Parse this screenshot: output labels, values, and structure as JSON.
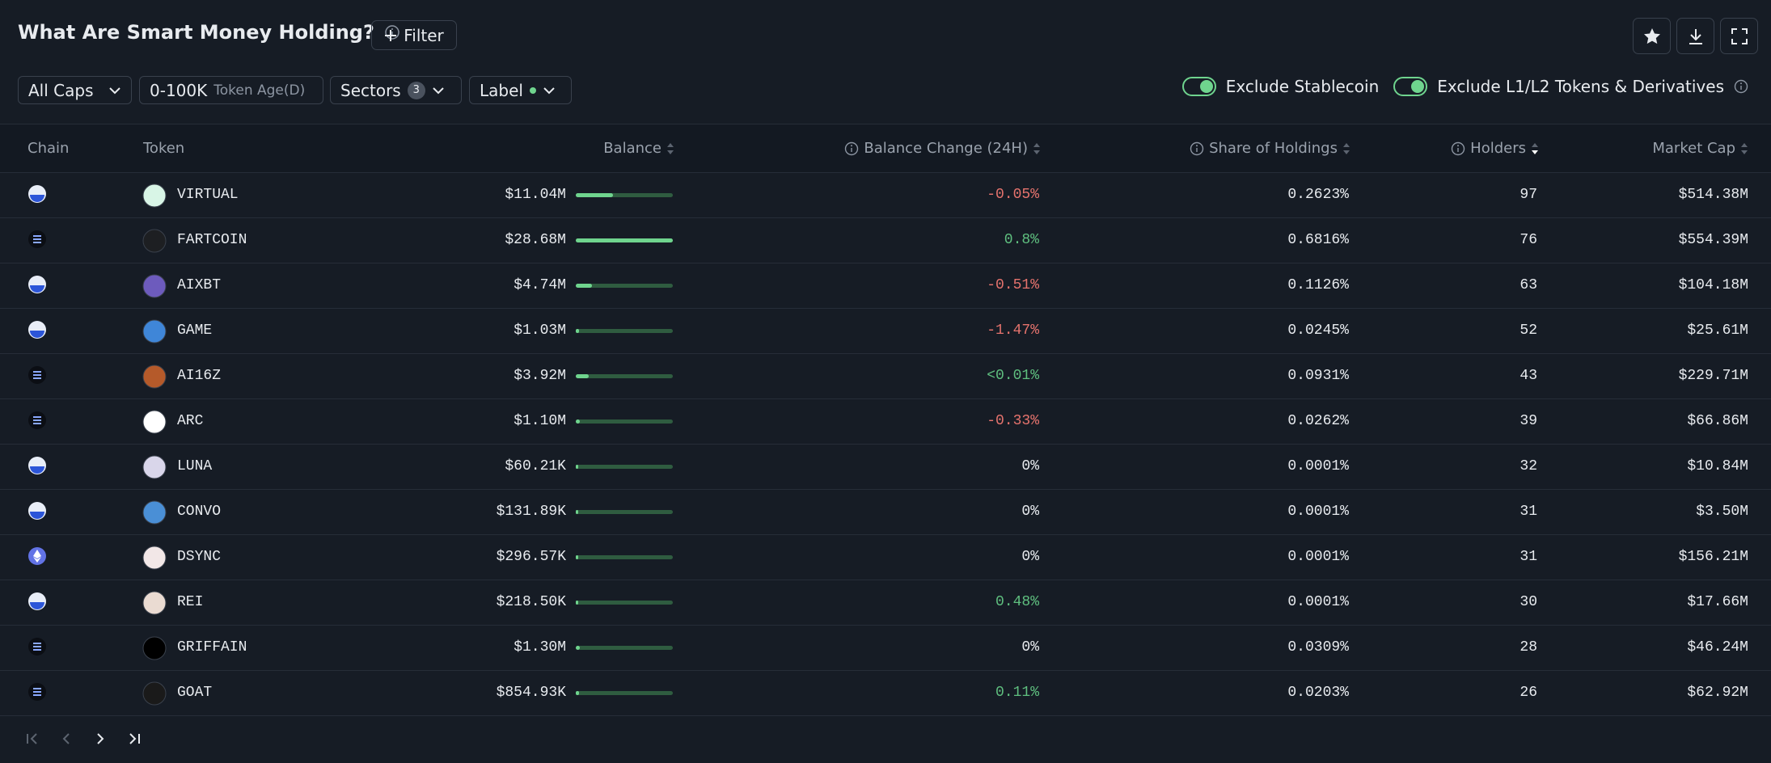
{
  "header": {
    "title": "What Are Smart Money Holding?",
    "filter_button": "Filter"
  },
  "filters": {
    "caps": "All Caps",
    "token_age_range": "0-100K",
    "token_age_label": "Token Age(D)",
    "sectors": "Sectors",
    "sectors_count": 3,
    "label": "Label",
    "toggles": [
      "Exclude Stablecoin",
      "Exclude L1/L2 Tokens & Derivatives"
    ]
  },
  "table": {
    "columns": [
      "Chain",
      "Token",
      "Balance",
      "Balance Change (24H)",
      "Share of Holdings",
      "Holders",
      "Market Cap"
    ],
    "rows": [
      {
        "token": "VIRTUAL",
        "balance": {
          "value": 11040000,
          "label": "$11.04M"
        },
        "change": "-0.05%",
        "share": "0.2623%",
        "holders": 97,
        "market_cap": "$514.38M"
      },
      {
        "token": "FARTCOIN",
        "balance": {
          "value": 28680000,
          "label": "$28.68M"
        },
        "change": "0.8%",
        "share": "0.6816%",
        "holders": 76,
        "market_cap": "$554.39M"
      },
      {
        "token": "AIXBT",
        "balance": {
          "value": 4740000,
          "label": "$4.74M"
        },
        "change": "-0.51%",
        "share": "0.1126%",
        "holders": 63,
        "market_cap": "$104.18M"
      },
      {
        "token": "GAME",
        "balance": {
          "value": 1030000,
          "label": "$1.03M"
        },
        "change": "-1.47%",
        "share": "0.0245%",
        "holders": 52,
        "market_cap": "$25.61M"
      },
      {
        "token": "AI16Z",
        "balance": {
          "value": 3920000,
          "label": "$3.92M"
        },
        "change": "<0.01%",
        "share": "0.0931%",
        "holders": 43,
        "market_cap": "$229.71M"
      },
      {
        "token": "ARC",
        "balance": {
          "value": 1100000,
          "label": "$1.10M"
        },
        "change": "-0.33%",
        "share": "0.0262%",
        "holders": 39,
        "market_cap": "$66.86M"
      },
      {
        "token": "LUNA",
        "balance": {
          "value": 60210,
          "label": "$60.21K"
        },
        "change": "0%",
        "share": "0.0001%",
        "holders": 32,
        "market_cap": "$10.84M"
      },
      {
        "token": "CONVO",
        "balance": {
          "value": 131890,
          "label": "$131.89K"
        },
        "change": "0%",
        "share": "0.0001%",
        "holders": 31,
        "market_cap": "$3.50M"
      },
      {
        "token": "DSYNC",
        "balance": {
          "value": 296570,
          "label": "$296.57K"
        },
        "change": "0%",
        "share": "0.0001%",
        "holders": 31,
        "market_cap": "$156.21M"
      },
      {
        "token": "REI",
        "balance": {
          "value": 218500,
          "label": "$218.50K"
        },
        "change": "0.48%",
        "share": "0.0001%",
        "holders": 30,
        "market_cap": "$17.66M"
      },
      {
        "token": "GRIFFAIN",
        "balance": {
          "value": 1300000,
          "label": "$1.30M"
        },
        "change": "0%",
        "share": "0.0309%",
        "holders": 28,
        "market_cap": "$46.24M"
      },
      {
        "token": "GOAT",
        "balance": {
          "value": 854930,
          "label": "$854.93K"
        },
        "change": "0.11%",
        "share": "0.0203%",
        "holders": 26,
        "market_cap": "$62.92M"
      }
    ]
  }
}
